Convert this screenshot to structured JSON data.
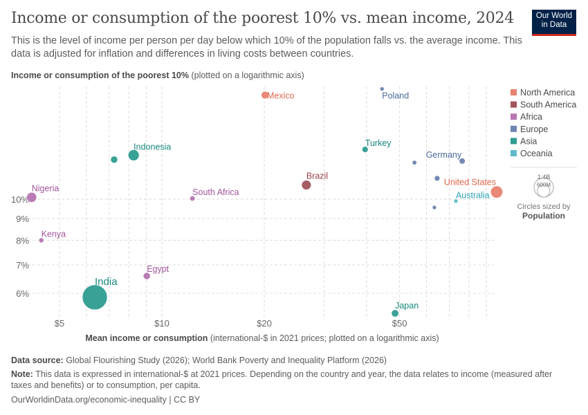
{
  "header": {
    "title": "Income or consumption of the poorest 10% vs. mean income, 2024",
    "subtitle": "This is the level of income per person per day below which 10% of the population falls vs. the average income. This data is adjusted for inflation and differences in living costs between countries.",
    "logo": "Our World in Data"
  },
  "chart_data": {
    "type": "scatter",
    "ylabel_bold": "Income or consumption of the poorest 10%",
    "ylabel_rest": " (plotted on a logarithmic axis)",
    "xlabel_bold": "Mean income or consumption",
    "xlabel_rest": " (international-$ in 2021 prices; plotted on a logarithmic axis)",
    "x_scale": "log",
    "y_scale": "log",
    "xlim": [
      3.9,
      105
    ],
    "ylim": [
      5.3,
      19
    ],
    "x_ticks": [
      {
        "v": 5,
        "label": "$5"
      },
      {
        "v": 10,
        "label": "$10"
      },
      {
        "v": 20,
        "label": "$20"
      },
      {
        "v": 50,
        "label": "$50"
      }
    ],
    "x_minor_grid": [
      6,
      7,
      8,
      9,
      30,
      40,
      60,
      70,
      80,
      90
    ],
    "y_ticks": [
      {
        "v": 6,
        "label": "6%"
      },
      {
        "v": 7,
        "label": "7%"
      },
      {
        "v": 8,
        "label": "8%"
      },
      {
        "v": 9,
        "label": "9%"
      },
      {
        "v": 10,
        "label": "10%"
      }
    ],
    "grid": true,
    "legend_position": "right",
    "legend": [
      {
        "name": "North America",
        "color": "#e8836f"
      },
      {
        "name": "South America",
        "color": "#a2555c"
      },
      {
        "name": "Africa",
        "color": "#b776b1"
      },
      {
        "name": "Europe",
        "color": "#6d84b0"
      },
      {
        "name": "Asia",
        "color": "#2f9c91"
      },
      {
        "name": "Oceania",
        "color": "#5fbccb"
      }
    ],
    "size_legend": {
      "large": "1:4B",
      "small": "600M",
      "caption": "Circles sized by",
      "variable": "Population"
    },
    "points": [
      {
        "label": "Mexico",
        "region": "North America",
        "x": 20.1,
        "y": 17.6,
        "pop": 130
      },
      {
        "label": "Poland",
        "region": "Europe",
        "x": 44.4,
        "y": 18.2,
        "pop": 37
      },
      {
        "label": "Indonesia",
        "region": "Asia",
        "x": 8.26,
        "y": 12.7,
        "pop": 280
      },
      {
        "label": "",
        "region": "Asia",
        "x": 7.24,
        "y": 12.4,
        "pop": 115
      },
      {
        "label": "Turkey",
        "region": "Asia",
        "x": 39.6,
        "y": 13.1,
        "pop": 86
      },
      {
        "label": "Germany",
        "region": "Europe",
        "x": 76.4,
        "y": 12.3,
        "pop": 84
      },
      {
        "label": "",
        "region": "Europe",
        "x": 55.3,
        "y": 12.2,
        "pop": 48
      },
      {
        "label": "Brazil",
        "region": "South America",
        "x": 26.6,
        "y": 10.8,
        "pop": 212
      },
      {
        "label": "",
        "region": "Europe",
        "x": 64.5,
        "y": 11.2,
        "pop": 68
      },
      {
        "label": "United States",
        "region": "North America",
        "x": 96.5,
        "y": 10.4,
        "pop": 340
      },
      {
        "label": "Australia",
        "region": "Oceania",
        "x": 73.2,
        "y": 9.9,
        "pop": 27
      },
      {
        "label": "",
        "region": "Europe",
        "x": 63.3,
        "y": 9.56,
        "pop": 10
      },
      {
        "label": "Nigeria",
        "region": "Africa",
        "x": 4.14,
        "y": 10.1,
        "pop": 230
      },
      {
        "label": "South Africa",
        "region": "Africa",
        "x": 12.3,
        "y": 10.04,
        "pop": 64
      },
      {
        "label": "Kenya",
        "region": "Africa",
        "x": 4.42,
        "y": 8.0,
        "pop": 56
      },
      {
        "label": "Egypt",
        "region": "Africa",
        "x": 9.03,
        "y": 6.59,
        "pop": 116
      },
      {
        "label": "India",
        "region": "Asia",
        "x": 6.35,
        "y": 5.87,
        "pop": 1450
      },
      {
        "label": "Japan",
        "region": "Asia",
        "x": 48.5,
        "y": 5.38,
        "pop": 124
      }
    ]
  },
  "footer": {
    "source_label": "Data source:",
    "source": " Global Flourishing Study (2026); World Bank Poverty and Inequality Platform (2026)",
    "note_label": "Note:",
    "note": " This data is expressed in international-$ at 2021 prices. Depending on the country and year, the data relates to income (measured after taxes and benefits) or to consumption, per capita.",
    "url": "OurWorldinData.org/economic-inequality | CC BY"
  }
}
